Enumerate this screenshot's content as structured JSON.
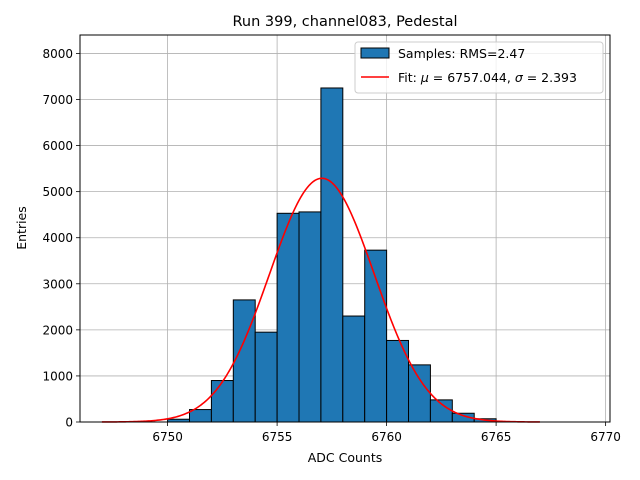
{
  "chart_data": {
    "type": "bar",
    "title": "Run 399, channel083, Pedestal",
    "xlabel": "ADC Counts",
    "ylabel": "Entries",
    "xlim": [
      6746,
      6770.2
    ],
    "ylim": [
      0,
      8400
    ],
    "xticks": [
      6750,
      6755,
      6760,
      6765,
      6770
    ],
    "yticks": [
      0,
      1000,
      2000,
      3000,
      4000,
      5000,
      6000,
      7000,
      8000
    ],
    "grid": true,
    "legend_position": "upper right",
    "histogram": {
      "name": "Samples: RMS=2.47",
      "bin_width": 1,
      "bin_starts": [
        6750,
        6751,
        6752,
        6753,
        6754,
        6755,
        6756,
        6757,
        6758,
        6759,
        6760,
        6761,
        6762,
        6763,
        6764
      ],
      "values": [
        60,
        270,
        900,
        2650,
        1950,
        4530,
        4560,
        7250,
        2300,
        3730,
        1770,
        1240,
        480,
        190,
        70
      ],
      "color": "#1f77b4",
      "edge_color": "#000000"
    },
    "fit": {
      "name_prefix": "Fit: ",
      "mu_symbol": "μ",
      "mu_text": " = 6757.044, ",
      "sigma_symbol": "σ",
      "sigma_text": " = 2.393",
      "mu": 6757.044,
      "sigma": 2.393,
      "amplitude": 5290,
      "x_range": [
        6747,
        6767
      ],
      "color": "#ff0000"
    }
  }
}
